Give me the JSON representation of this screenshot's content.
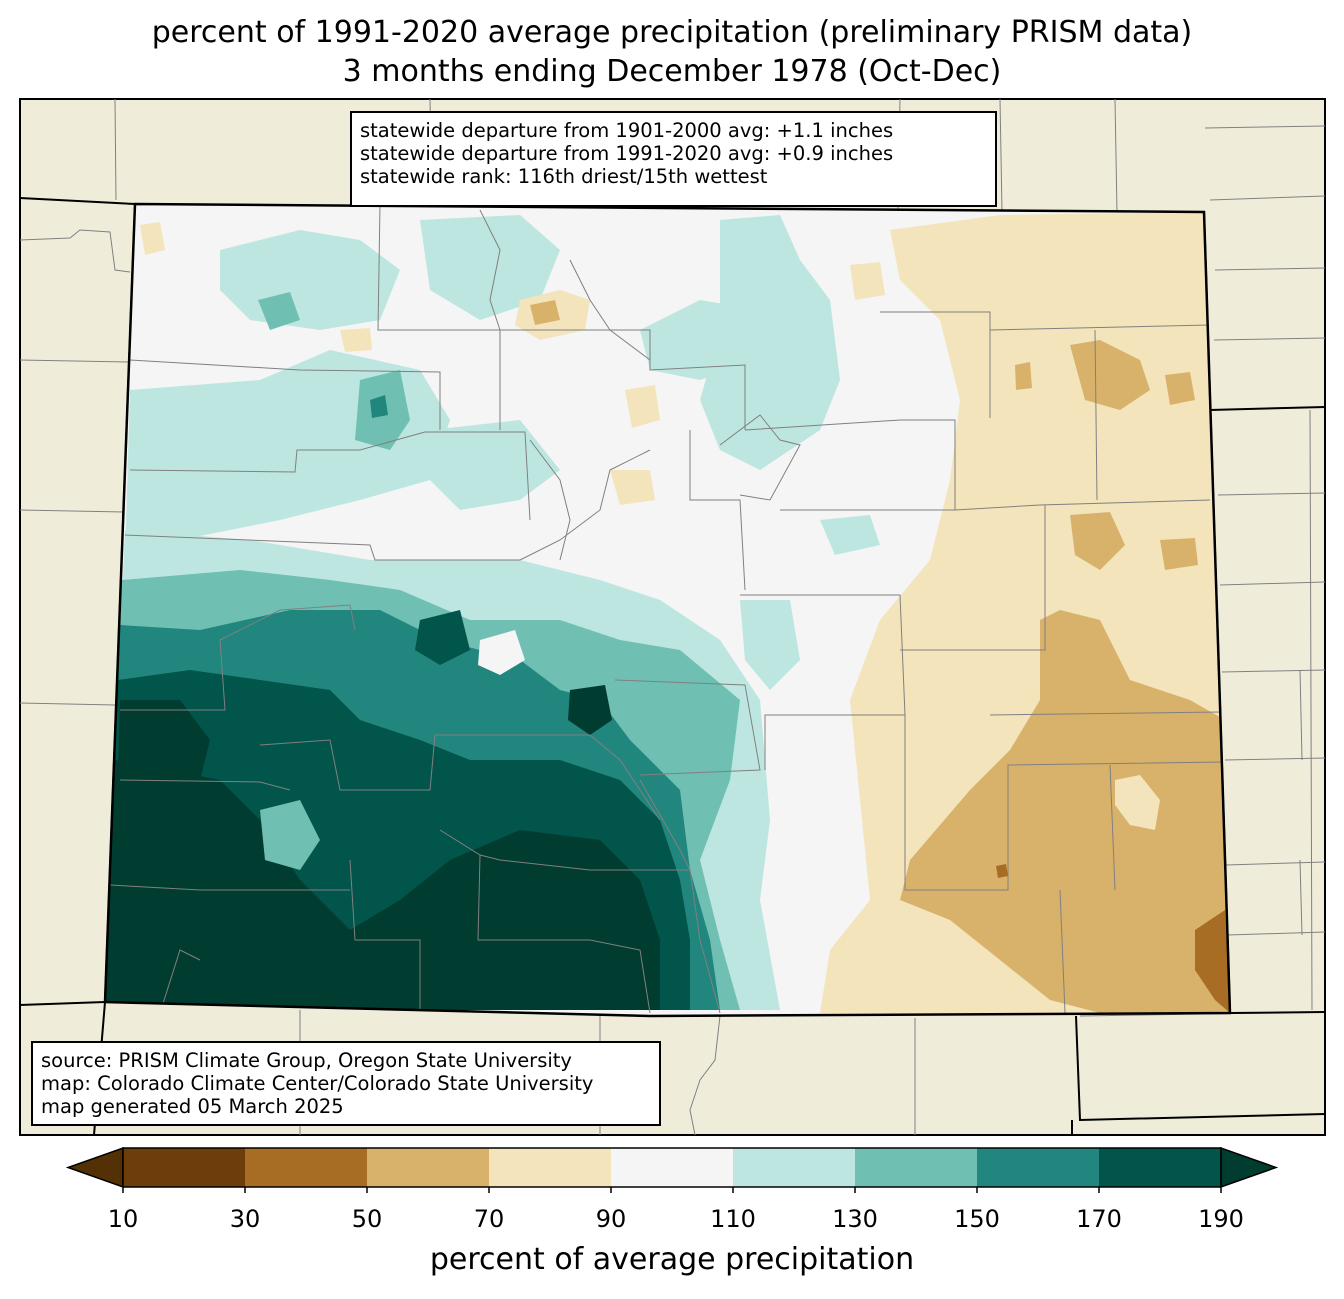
{
  "title": {
    "line1": "percent of 1991-2020 average precipitation (preliminary PRISM data)",
    "line2": "3 months ending December 1978 (Oct-Dec)"
  },
  "stats_box": {
    "line1": "statewide departure from 1901-2000 avg: +1.1 inches",
    "line2": "statewide departure from 1991-2020 avg: +0.9 inches",
    "line3": "statewide rank: 116th driest/15th wettest"
  },
  "source_box": {
    "line1": "source: PRISM Climate Group, Oregon State University",
    "line2": "map: Colorado Climate Center/Colorado State University",
    "line3": "map generated 05 March 2025"
  },
  "colorbar": {
    "label": "percent of average precipitation",
    "ticks": [
      "10",
      "30",
      "50",
      "70",
      "90",
      "110",
      "130",
      "150",
      "170",
      "190"
    ],
    "under_color": "#543005",
    "over_color": "#003c30",
    "colors": [
      "#6d3d0b",
      "#a86d24",
      "#d8b26b",
      "#f3e4bc",
      "#f4f5f4",
      "#bde6e0",
      "#6fbfb2",
      "#21867d",
      "#01554a"
    ]
  },
  "colors": {
    "land_background": "#efedda",
    "border": "#000000",
    "county_lines": "#808080"
  }
}
